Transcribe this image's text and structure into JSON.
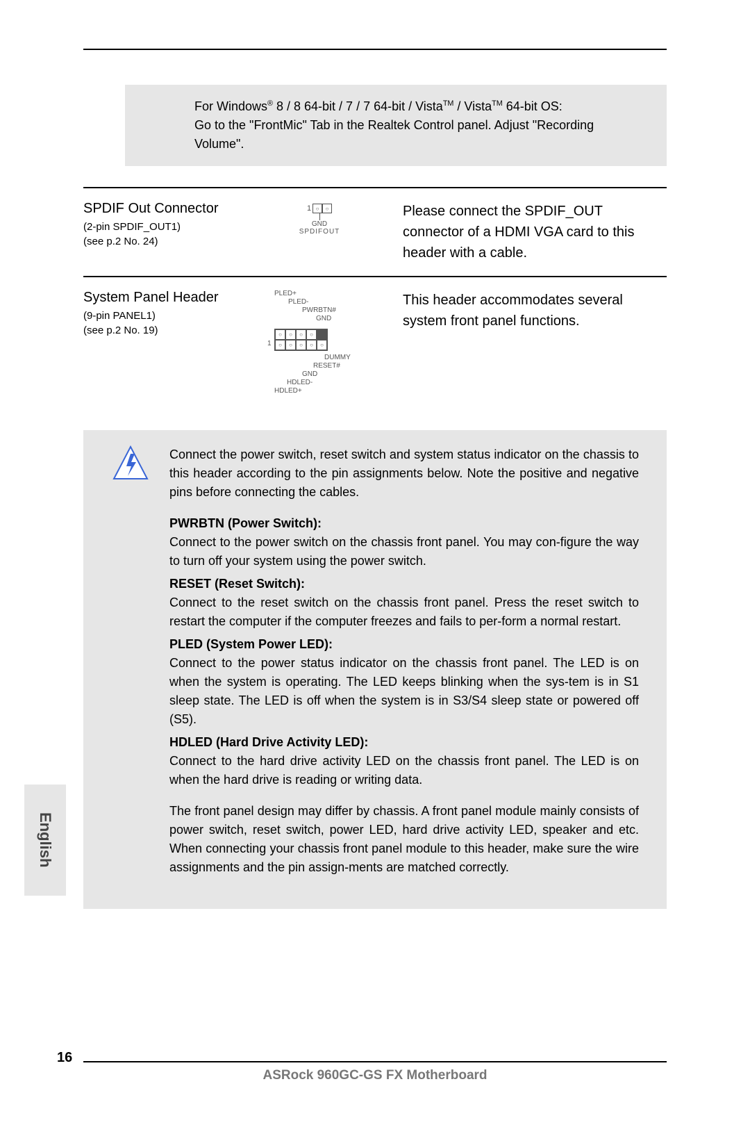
{
  "note_box": {
    "line1_pre": "For Windows",
    "line1_reg": "®",
    "line1_mid": " 8 / 8 64-bit / 7 / 7 64-bit / Vista",
    "line1_tm1": "TM",
    "line1_mid2": " / Vista",
    "line1_tm2": "TM",
    "line1_post": " 64-bit OS:",
    "line2": "Go to the \"FrontMic\" Tab in the Realtek Control panel. Adjust \"Recording Volume\"."
  },
  "spdif": {
    "title": "SPDIF Out Connector",
    "sub1": "(2-pin SPDIF_OUT1)",
    "sub2": "(see p.2  No. 24)",
    "desc": "Please connect the SPDIF_OUT connector of a HDMI VGA card to this header with a cable.",
    "diag": {
      "gnd": "GND",
      "spdifout": "SPDIFOUT",
      "one": "1"
    }
  },
  "panel": {
    "title": "System Panel Header",
    "sub1": "(9-pin PANEL1)",
    "sub2": "(see p.2  No. 19)",
    "desc": "This header accommodates several system front panel functions.",
    "diag": {
      "top": [
        "PLED+",
        "PLED-",
        "PWRBTN#",
        "GND"
      ],
      "bot": [
        "DUMMY",
        "RESET#",
        "GND",
        "HDLED-",
        "HDLED+"
      ],
      "one": "1"
    }
  },
  "info": {
    "intro": "Connect the power switch, reset switch and system status indicator on the chassis to this header according to the pin assignments below. Note the positive and negative pins before connecting the cables.",
    "items": [
      {
        "head": "PWRBTN (Power Switch):",
        "text": "Connect to the power switch on the chassis front panel. You may con-figure the way to turn off your system using the power switch."
      },
      {
        "head": "RESET (Reset Switch):",
        "text": "Connect to the reset switch on the chassis front panel. Press the reset switch to restart the computer if the computer freezes and fails to per-form a normal restart."
      },
      {
        "head": "PLED (System Power LED):",
        "text": "Connect to the power status indicator on the chassis front panel. The LED is on when the system is operating. The LED keeps blinking when the sys-tem is in S1 sleep state. The LED is off when the system is in S3/S4 sleep state or powered off (S5)."
      },
      {
        "head": "HDLED (Hard Drive Activity LED):",
        "text": "Connect to the hard drive activity LED on the chassis front panel. The LED is on when the hard drive is reading or writing data."
      }
    ],
    "outro": "The front panel design may differ by chassis. A front panel module mainly consists of power switch, reset switch, power LED, hard drive activity LED, speaker and etc. When connecting your chassis front panel module to this header, make sure the wire assignments and the pin assign-ments are matched correctly."
  },
  "icon": {
    "stroke": "#3a66d6",
    "fill": "#ffffff"
  },
  "footer": {
    "page_num": "16",
    "title": "ASRock  960GC-GS FX  Motherboard"
  },
  "lang_tab": "English"
}
